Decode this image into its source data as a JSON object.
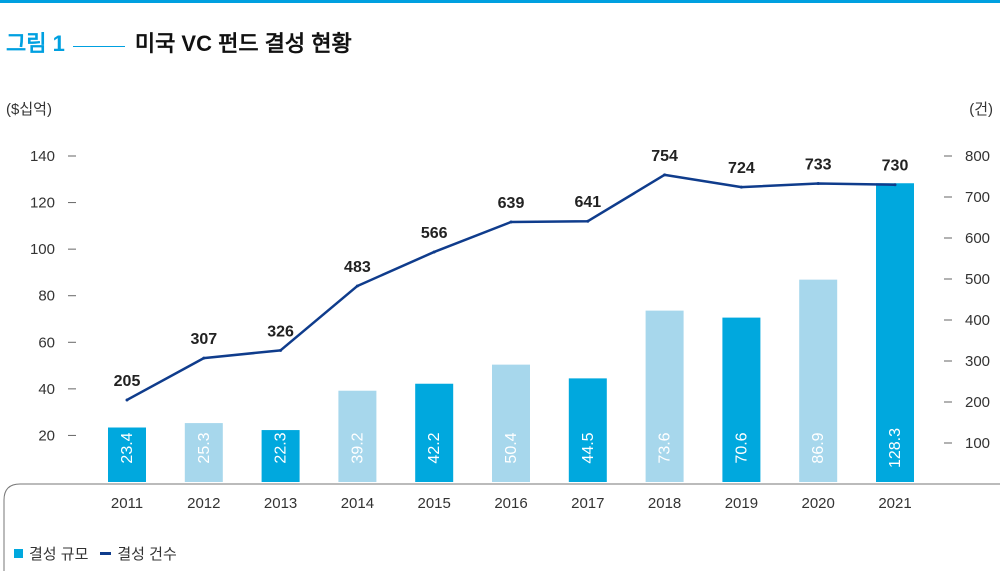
{
  "figure": {
    "label": "그림 1",
    "title": "미국 VC 펀드 결성 현황"
  },
  "colors": {
    "accent": "#00a0e0",
    "bar_dark": "#00a8de",
    "bar_light": "#a7d7ec",
    "line": "#0f3c8c"
  },
  "legend": {
    "bar_label": "결성 규모",
    "line_label": "결성 건수"
  },
  "chart_data": {
    "type": "bar",
    "categories": [
      "2011",
      "2012",
      "2013",
      "2014",
      "2015",
      "2016",
      "2017",
      "2018",
      "2019",
      "2020",
      "2021"
    ],
    "series": [
      {
        "name": "결성 규모",
        "type": "bar",
        "axis": "left",
        "values": [
          23.4,
          25.3,
          22.3,
          39.2,
          42.2,
          50.4,
          44.5,
          73.6,
          70.6,
          86.9,
          128.3
        ],
        "labels": [
          "23.4",
          "25.3",
          "22.3",
          "39.2",
          "42.2",
          "50.4",
          "44.5",
          "73.6",
          "70.6",
          "86.9",
          "128.3"
        ],
        "shade": [
          "dark",
          "light",
          "dark",
          "light",
          "dark",
          "light",
          "dark",
          "light",
          "dark",
          "light",
          "dark"
        ]
      },
      {
        "name": "결성 건수",
        "type": "line",
        "axis": "right",
        "values": [
          205,
          307,
          326,
          483,
          566,
          639,
          641,
          754,
          724,
          733,
          730
        ],
        "labels": [
          "205",
          "307",
          "326",
          "483",
          "566",
          "639",
          "641",
          "754",
          "724",
          "733",
          "730"
        ]
      }
    ],
    "y_left": {
      "unit_label": "($십억)",
      "ticks": [
        "140",
        "120",
        "100",
        "80",
        "60",
        "40",
        "20"
      ],
      "tick_values": [
        140,
        120,
        100,
        80,
        60,
        40,
        20
      ]
    },
    "y_right": {
      "unit_label": "(건)",
      "ticks": [
        "800",
        "700",
        "600",
        "500",
        "400",
        "300",
        "200",
        "100"
      ],
      "tick_values": [
        800,
        700,
        600,
        500,
        400,
        300,
        200,
        100
      ]
    },
    "grid": false,
    "legend_position": "bottom-left"
  }
}
